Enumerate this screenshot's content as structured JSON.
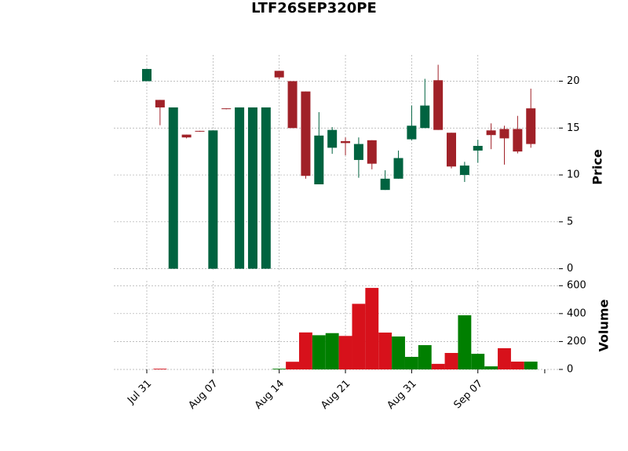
{
  "chart_data": {
    "type": "candlestick",
    "title": "LTF26SEP320PE",
    "categories": [
      "Jul 31",
      null,
      null,
      null,
      null,
      "Aug 07",
      null,
      null,
      null,
      null,
      "Aug 14",
      null,
      null,
      null,
      null,
      "Aug 21",
      null,
      null,
      null,
      null,
      "Aug 31",
      null,
      null,
      null,
      null,
      "Sep 07",
      null,
      null,
      null,
      null
    ],
    "open": [
      20,
      18,
      0,
      14.3,
      14.7,
      0,
      17.1,
      0,
      0,
      0,
      21.1,
      20,
      18.9,
      9,
      12.9,
      13.6,
      11.6,
      13.7,
      8.4,
      9.6,
      13.8,
      15,
      20.1,
      14.5,
      10,
      12.6,
      14.75,
      14.9,
      14.9,
      17.1
    ],
    "high": [
      21.3,
      18,
      17.2,
      14.3,
      14.7,
      14.75,
      17.1,
      17.2,
      17.2,
      17.2,
      21.1,
      20,
      18.9,
      16.7,
      15.1,
      14,
      14,
      13.7,
      10.5,
      12.6,
      17.4,
      20.25,
      21.75,
      14.5,
      11.4,
      13.75,
      15.5,
      15.25,
      16.3,
      19.2
    ],
    "low": [
      20,
      15.3,
      0,
      13.9,
      14.6,
      0,
      17,
      0,
      0,
      0,
      20.2,
      15,
      9.6,
      9,
      12.25,
      12.1,
      9.7,
      10.6,
      8.4,
      9.6,
      13.7,
      15,
      14.8,
      10.7,
      9.25,
      11.3,
      12.75,
      11.1,
      12.3,
      12.9
    ],
    "close": [
      21.3,
      17.2,
      17.2,
      14,
      14.65,
      14.75,
      17.05,
      17.2,
      17.2,
      17.2,
      20.4,
      15,
      9.9,
      14.2,
      14.8,
      13.4,
      13.3,
      11.2,
      9.6,
      11.8,
      15.25,
      17.4,
      14.8,
      10.9,
      11,
      13.1,
      14.25,
      13.9,
      12.5,
      13.3
    ],
    "volume": [
      0,
      5,
      0,
      0,
      0,
      0,
      0,
      0,
      0,
      0,
      5,
      55,
      265,
      245,
      260,
      240,
      470,
      584,
      264,
      236,
      90,
      174,
      40,
      118,
      388,
      112,
      22,
      152,
      56,
      56
    ],
    "volume_colors": [
      "#007f00",
      "#d7111b",
      "#007f00",
      "#d7111b",
      "#d7111b",
      "#007f00",
      "#d7111b",
      "#007f00",
      "#007f00",
      "#007f00",
      "#007f00",
      "#d7111b",
      "#d7111b",
      "#007f00",
      "#007f00",
      "#d7111b",
      "#d7111b",
      "#d7111b",
      "#d7111b",
      "#007f00",
      "#007f00",
      "#007f00",
      "#d7111b",
      "#d7111b",
      "#007f00",
      "#007f00",
      "#007f00",
      "#d7111b",
      "#d7111b",
      "#007f00"
    ],
    "up_color": "#006340",
    "down_color": "#a02128",
    "ylabel": "Price",
    "y2label": "Volume",
    "ylim": [
      -0.2,
      22.8
    ],
    "yticks": [
      0,
      5,
      10,
      15,
      20
    ],
    "y2lim": [
      0,
      635
    ],
    "y2ticks": [
      0,
      200,
      400,
      600
    ],
    "grid": true
  }
}
